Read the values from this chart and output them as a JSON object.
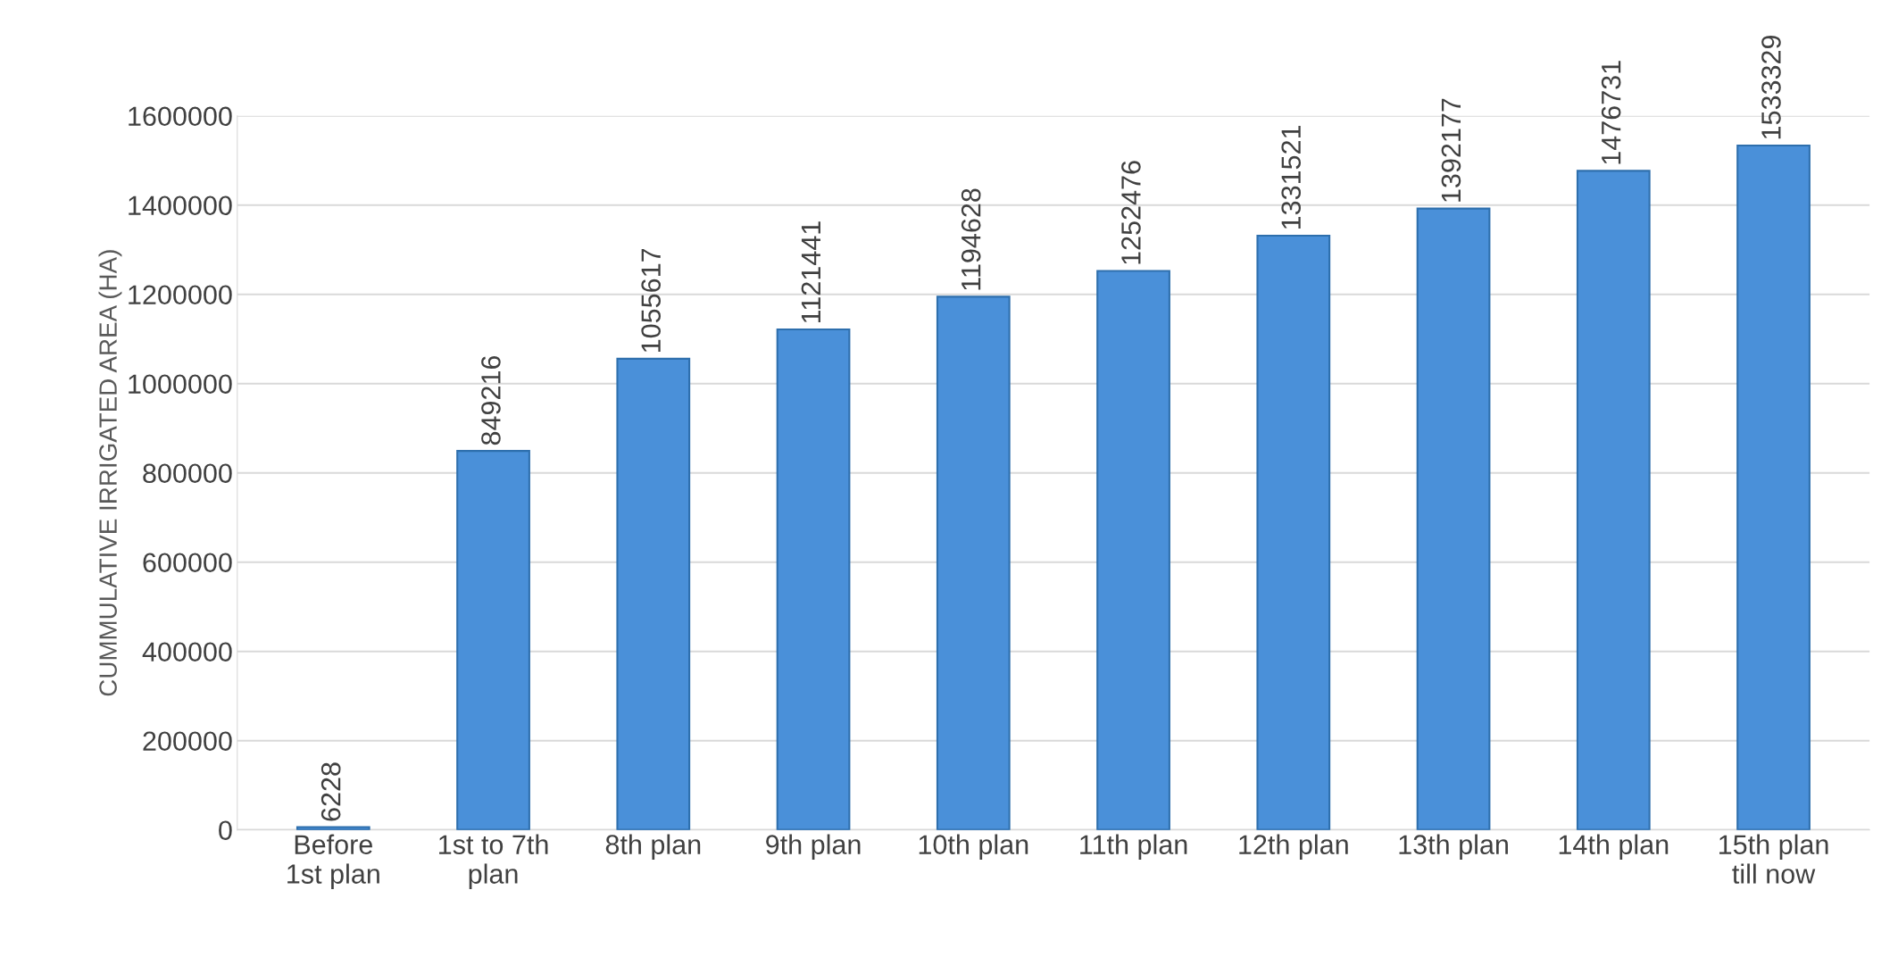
{
  "chart_data": {
    "type": "bar",
    "ylabel": "CUMMULATIVE IRRIGATED AREA (HA)",
    "categories": [
      "Before\n1st plan",
      "1st to 7th\nplan",
      "8th plan",
      "9th plan",
      "10th plan",
      "11th plan",
      "12th plan",
      "13th plan",
      "14th plan",
      "15th plan\ntill now"
    ],
    "values": [
      6228,
      849216,
      1055617,
      1121441,
      1194628,
      1252476,
      1331521,
      1392177,
      1476731,
      1533329
    ],
    "color": "#4a90d9",
    "ylim": [
      0,
      1600000
    ],
    "yticks": [
      0,
      200000,
      400000,
      600000,
      800000,
      1000000,
      1200000,
      1400000,
      1600000
    ],
    "grid": "y",
    "data_labels": true
  }
}
